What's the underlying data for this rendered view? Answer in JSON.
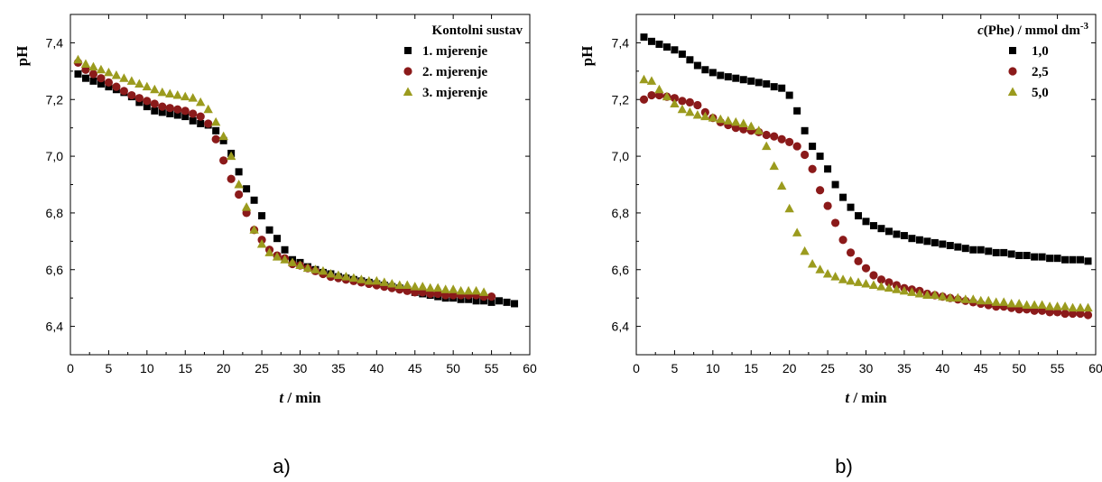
{
  "colors": {
    "series1": "#000000",
    "series2": "#8b1a1a",
    "series3": "#9b9b1e"
  },
  "chart_data": [
    {
      "type": "scatter",
      "panel_label": "a)",
      "xlabel_var": "t",
      "xlabel_unit": " / min",
      "ylabel": "pH",
      "xlim": [
        0,
        60
      ],
      "ylim": [
        6.3,
        7.5
      ],
      "x_ticks": [
        0,
        5,
        10,
        15,
        20,
        25,
        30,
        35,
        40,
        45,
        50,
        55,
        60
      ],
      "x_tick_labels": [
        "0",
        "5",
        "10",
        "15",
        "20",
        "25",
        "30",
        "35",
        "40",
        "45",
        "50",
        "55",
        "60"
      ],
      "y_ticks": [
        6.4,
        6.6,
        6.8,
        7.0,
        7.2,
        7.4
      ],
      "y_tick_labels": [
        "6,4",
        "6,6",
        "6,8",
        "7,0",
        "7,2",
        "7,4"
      ],
      "legend_title": "Kontolni sustav",
      "legend_title_var": "",
      "legend_title_sup": "",
      "legend_position": "top-right",
      "series": [
        {
          "name": "1. mjerenje",
          "marker": "square",
          "color_key": "series1",
          "x": [
            1,
            2,
            3,
            4,
            5,
            6,
            7,
            8,
            9,
            10,
            11,
            12,
            13,
            14,
            15,
            16,
            17,
            18,
            19,
            20,
            21,
            22,
            23,
            24,
            25,
            26,
            27,
            28,
            29,
            30,
            31,
            32,
            33,
            34,
            35,
            36,
            37,
            38,
            39,
            40,
            41,
            42,
            43,
            44,
            45,
            46,
            47,
            48,
            49,
            50,
            51,
            52,
            53,
            54,
            55,
            56,
            57,
            58
          ],
          "y": [
            7.29,
            7.275,
            7.265,
            7.255,
            7.245,
            7.235,
            7.225,
            7.21,
            7.19,
            7.175,
            7.16,
            7.155,
            7.15,
            7.145,
            7.14,
            7.125,
            7.115,
            7.11,
            7.09,
            7.055,
            7.01,
            6.945,
            6.885,
            6.845,
            6.79,
            6.74,
            6.71,
            6.67,
            6.635,
            6.625,
            6.61,
            6.6,
            6.59,
            6.585,
            6.575,
            6.57,
            6.565,
            6.56,
            6.555,
            6.55,
            6.545,
            6.54,
            6.535,
            6.53,
            6.52,
            6.515,
            6.51,
            6.505,
            6.5,
            6.5,
            6.495,
            6.495,
            6.49,
            6.49,
            6.485,
            6.49,
            6.485,
            6.48
          ]
        },
        {
          "name": "2. mjerenje",
          "marker": "circle",
          "color_key": "series2",
          "x": [
            1,
            2,
            3,
            4,
            5,
            6,
            7,
            8,
            9,
            10,
            11,
            12,
            13,
            14,
            15,
            16,
            17,
            18,
            19,
            20,
            21,
            22,
            23,
            24,
            25,
            26,
            27,
            28,
            29,
            30,
            31,
            32,
            33,
            34,
            35,
            36,
            37,
            38,
            39,
            40,
            41,
            42,
            43,
            44,
            45,
            46,
            47,
            48,
            49,
            50,
            51,
            52,
            53,
            54,
            55
          ],
          "y": [
            7.33,
            7.305,
            7.29,
            7.275,
            7.26,
            7.245,
            7.23,
            7.215,
            7.205,
            7.195,
            7.185,
            7.175,
            7.17,
            7.165,
            7.16,
            7.15,
            7.14,
            7.115,
            7.06,
            6.985,
            6.92,
            6.865,
            6.8,
            6.74,
            6.705,
            6.67,
            6.65,
            6.64,
            6.62,
            6.615,
            6.605,
            6.595,
            6.585,
            6.575,
            6.57,
            6.565,
            6.56,
            6.555,
            6.55,
            6.545,
            6.54,
            6.535,
            6.53,
            6.525,
            6.52,
            6.52,
            6.515,
            6.515,
            6.51,
            6.51,
            6.51,
            6.51,
            6.51,
            6.505,
            6.505
          ]
        },
        {
          "name": "3. mjerenje",
          "marker": "triangle",
          "color_key": "series3",
          "x": [
            1,
            2,
            3,
            4,
            5,
            6,
            7,
            8,
            9,
            10,
            11,
            12,
            13,
            14,
            15,
            16,
            17,
            18,
            19,
            20,
            21,
            22,
            23,
            24,
            25,
            26,
            27,
            28,
            29,
            30,
            31,
            32,
            33,
            34,
            35,
            36,
            37,
            38,
            39,
            40,
            41,
            42,
            43,
            44,
            45,
            46,
            47,
            48,
            49,
            50,
            51,
            52,
            53,
            54
          ],
          "y": [
            7.34,
            7.325,
            7.315,
            7.305,
            7.295,
            7.285,
            7.275,
            7.265,
            7.255,
            7.245,
            7.235,
            7.225,
            7.22,
            7.215,
            7.21,
            7.205,
            7.19,
            7.165,
            7.12,
            7.07,
            7.0,
            6.9,
            6.82,
            6.74,
            6.69,
            6.66,
            6.645,
            6.635,
            6.625,
            6.615,
            6.605,
            6.6,
            6.595,
            6.585,
            6.58,
            6.575,
            6.57,
            6.565,
            6.56,
            6.56,
            6.555,
            6.55,
            6.545,
            6.545,
            6.54,
            6.54,
            6.535,
            6.535,
            6.53,
            6.53,
            6.525,
            6.525,
            6.525,
            6.52
          ]
        }
      ]
    },
    {
      "type": "scatter",
      "panel_label": "b)",
      "xlabel_var": "t",
      "xlabel_unit": " / min",
      "ylabel": "pH",
      "xlim": [
        0,
        60
      ],
      "ylim": [
        6.3,
        7.5
      ],
      "x_ticks": [
        0,
        5,
        10,
        15,
        20,
        25,
        30,
        35,
        40,
        45,
        50,
        55,
        60
      ],
      "x_tick_labels": [
        "0",
        "5",
        "10",
        "15",
        "20",
        "25",
        "30",
        "35",
        "40",
        "45",
        "50",
        "55",
        "60"
      ],
      "y_ticks": [
        6.4,
        6.6,
        6.8,
        7.0,
        7.2,
        7.4
      ],
      "y_tick_labels": [
        "6,4",
        "6,6",
        "6,8",
        "7,0",
        "7,2",
        "7,4"
      ],
      "legend_title": "(Phe) / mmol dm",
      "legend_title_var": "c",
      "legend_title_sup": "-3",
      "legend_position": "top-right",
      "series": [
        {
          "name": "1,0",
          "marker": "square",
          "color_key": "series1",
          "x": [
            1,
            2,
            3,
            4,
            5,
            6,
            7,
            8,
            9,
            10,
            11,
            12,
            13,
            14,
            15,
            16,
            17,
            18,
            19,
            20,
            21,
            22,
            23,
            24,
            25,
            26,
            27,
            28,
            29,
            30,
            31,
            32,
            33,
            34,
            35,
            36,
            37,
            38,
            39,
            40,
            41,
            42,
            43,
            44,
            45,
            46,
            47,
            48,
            49,
            50,
            51,
            52,
            53,
            54,
            55,
            56,
            57,
            58,
            59
          ],
          "y": [
            7.42,
            7.405,
            7.395,
            7.385,
            7.375,
            7.36,
            7.34,
            7.32,
            7.305,
            7.295,
            7.285,
            7.28,
            7.275,
            7.27,
            7.265,
            7.26,
            7.255,
            7.245,
            7.24,
            7.215,
            7.16,
            7.09,
            7.035,
            7.0,
            6.955,
            6.9,
            6.855,
            6.82,
            6.79,
            6.77,
            6.755,
            6.745,
            6.735,
            6.725,
            6.72,
            6.71,
            6.705,
            6.7,
            6.695,
            6.69,
            6.685,
            6.68,
            6.675,
            6.67,
            6.67,
            6.665,
            6.66,
            6.66,
            6.655,
            6.65,
            6.65,
            6.645,
            6.645,
            6.64,
            6.64,
            6.635,
            6.635,
            6.635,
            6.63
          ]
        },
        {
          "name": "2,5",
          "marker": "circle",
          "color_key": "series2",
          "x": [
            1,
            2,
            3,
            4,
            5,
            6,
            7,
            8,
            9,
            10,
            11,
            12,
            13,
            14,
            15,
            16,
            17,
            18,
            19,
            20,
            21,
            22,
            23,
            24,
            25,
            26,
            27,
            28,
            29,
            30,
            31,
            32,
            33,
            34,
            35,
            36,
            37,
            38,
            39,
            40,
            41,
            42,
            43,
            44,
            45,
            46,
            47,
            48,
            49,
            50,
            51,
            52,
            53,
            54,
            55,
            56,
            57,
            58,
            59
          ],
          "y": [
            7.2,
            7.215,
            7.215,
            7.21,
            7.205,
            7.195,
            7.19,
            7.18,
            7.155,
            7.135,
            7.12,
            7.11,
            7.1,
            7.095,
            7.09,
            7.085,
            7.075,
            7.07,
            7.06,
            7.05,
            7.035,
            7.005,
            6.955,
            6.88,
            6.825,
            6.765,
            6.705,
            6.66,
            6.63,
            6.605,
            6.58,
            6.565,
            6.555,
            6.545,
            6.535,
            6.53,
            6.525,
            6.515,
            6.51,
            6.505,
            6.5,
            6.495,
            6.49,
            6.485,
            6.48,
            6.475,
            6.47,
            6.47,
            6.465,
            6.46,
            6.46,
            6.455,
            6.455,
            6.45,
            6.45,
            6.445,
            6.445,
            6.445,
            6.44
          ]
        },
        {
          "name": "5,0",
          "marker": "triangle",
          "color_key": "series3",
          "x": [
            1,
            2,
            3,
            4,
            5,
            6,
            7,
            8,
            9,
            10,
            11,
            12,
            13,
            14,
            15,
            16,
            17,
            18,
            19,
            20,
            21,
            22,
            23,
            24,
            25,
            26,
            27,
            28,
            29,
            30,
            31,
            32,
            33,
            34,
            35,
            36,
            37,
            38,
            39,
            40,
            41,
            42,
            43,
            44,
            45,
            46,
            47,
            48,
            49,
            50,
            51,
            52,
            53,
            54,
            55,
            56,
            57,
            58,
            59
          ],
          "y": [
            7.27,
            7.265,
            7.235,
            7.21,
            7.185,
            7.165,
            7.155,
            7.145,
            7.14,
            7.135,
            7.13,
            7.125,
            7.12,
            7.115,
            7.105,
            7.09,
            7.035,
            6.965,
            6.895,
            6.815,
            6.73,
            6.665,
            6.62,
            6.6,
            6.585,
            6.575,
            6.565,
            6.56,
            6.555,
            6.55,
            6.545,
            6.54,
            6.535,
            6.53,
            6.525,
            6.52,
            6.515,
            6.51,
            6.51,
            6.505,
            6.5,
            6.5,
            6.495,
            6.495,
            6.49,
            6.49,
            6.485,
            6.485,
            6.48,
            6.48,
            6.475,
            6.475,
            6.475,
            6.47,
            6.47,
            6.47,
            6.465,
            6.465,
            6.465
          ]
        }
      ]
    }
  ]
}
